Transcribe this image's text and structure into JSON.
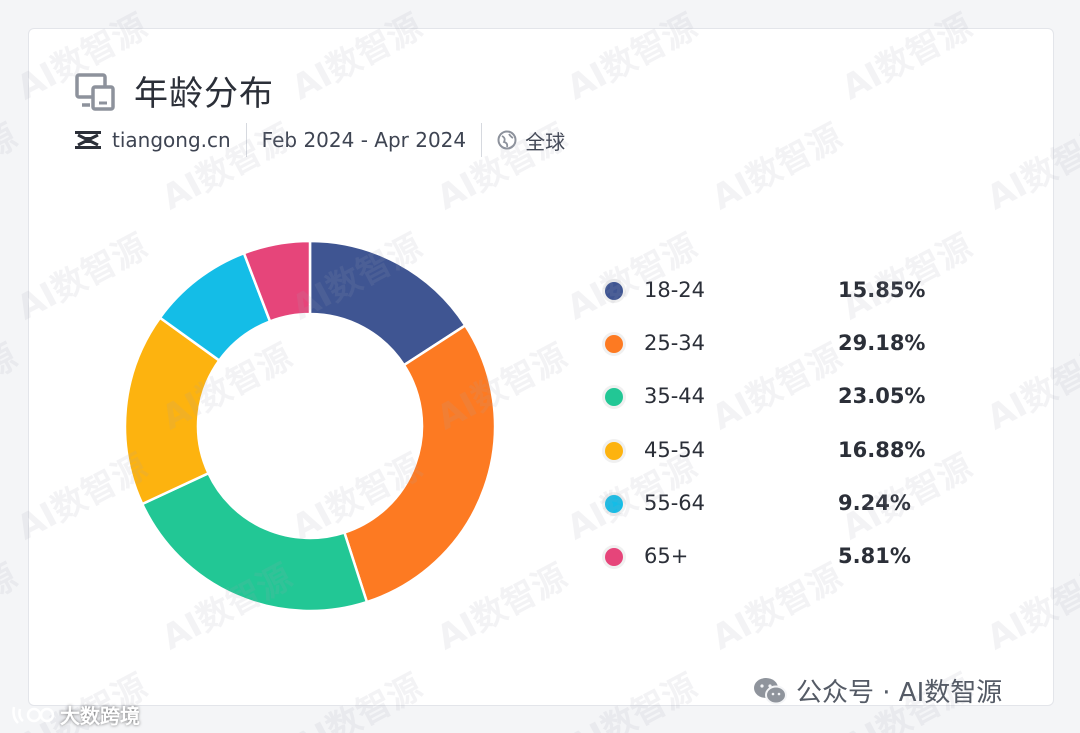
{
  "header": {
    "title": "年龄分布",
    "site": "tiangong.cn",
    "date_range": "Feb 2024 - Apr 2024",
    "region": "全球"
  },
  "chart_data": {
    "type": "pie",
    "categories": [
      "18-24",
      "25-34",
      "35-44",
      "45-54",
      "55-64",
      "65+"
    ],
    "values": [
      15.85,
      29.18,
      23.05,
      16.88,
      9.24,
      5.81
    ],
    "value_labels": [
      "15.85%",
      "29.18%",
      "23.05%",
      "16.88%",
      "9.24%",
      "5.81%"
    ],
    "colors": [
      "#3f5592",
      "#fd7a22",
      "#22c795",
      "#fdb30f",
      "#14bde7",
      "#e6457a"
    ],
    "title": "年龄分布",
    "donut": true,
    "legend_position": "right"
  },
  "watermark": {
    "text": "AI数智源",
    "footer_left": "大数跨境",
    "footer_right": "公众号 · AI数智源"
  }
}
